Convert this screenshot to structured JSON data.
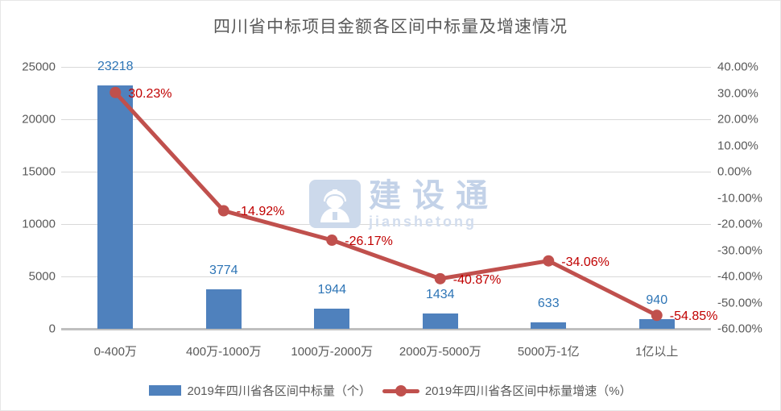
{
  "title": "四川省中标项目金额各区间中标量及增速情况",
  "watermark": {
    "brand": "建设通",
    "latin": "jianshetong",
    "icon": "construction-worker-icon"
  },
  "chart_data": {
    "type": "combo-bar-line",
    "title": "四川省中标项目金额各区间中标量及增速情况",
    "categories": [
      "0-400万",
      "400万-1000万",
      "1000万-2000万",
      "2000万-5000万",
      "5000万-1亿",
      "1亿以上"
    ],
    "series": [
      {
        "name": "2019年四川省各区间中标量（个）",
        "type": "bar",
        "axis": "left",
        "color": "#4f81bd",
        "values": [
          23218,
          3774,
          1944,
          1434,
          633,
          940
        ],
        "labels": [
          "23218",
          "3774",
          "1944",
          "1434",
          "633",
          "940"
        ]
      },
      {
        "name": "2019年四川省各区间中标量增速（%）",
        "type": "line",
        "axis": "right",
        "color": "#c0504d",
        "values": [
          30.23,
          -14.92,
          -26.17,
          -40.87,
          -34.06,
          -54.85
        ],
        "labels": [
          "30.23%",
          "-14.92%",
          "-26.17%",
          "-40.87%",
          "-34.06%",
          "-54.85%"
        ]
      }
    ],
    "left_axis": {
      "min": 0,
      "max": 25000,
      "step": 5000,
      "ticks": [
        "25000",
        "20000",
        "15000",
        "10000",
        "5000",
        "0"
      ]
    },
    "right_axis": {
      "min": -60,
      "max": 40,
      "step": 10,
      "ticks": [
        "40.00%",
        "30.00%",
        "20.00%",
        "10.00%",
        "0.00%",
        "-10.00%",
        "-20.00%",
        "-30.00%",
        "-40.00%",
        "-50.00%",
        "-60.00%"
      ]
    },
    "grid": true,
    "legend_position": "bottom"
  },
  "colors": {
    "bar": "#4f81bd",
    "line": "#c0504d",
    "bar_label": "#2e75b6",
    "pct_label": "#c00000",
    "axis_text": "#595959",
    "gridline": "#d9d9d9"
  }
}
